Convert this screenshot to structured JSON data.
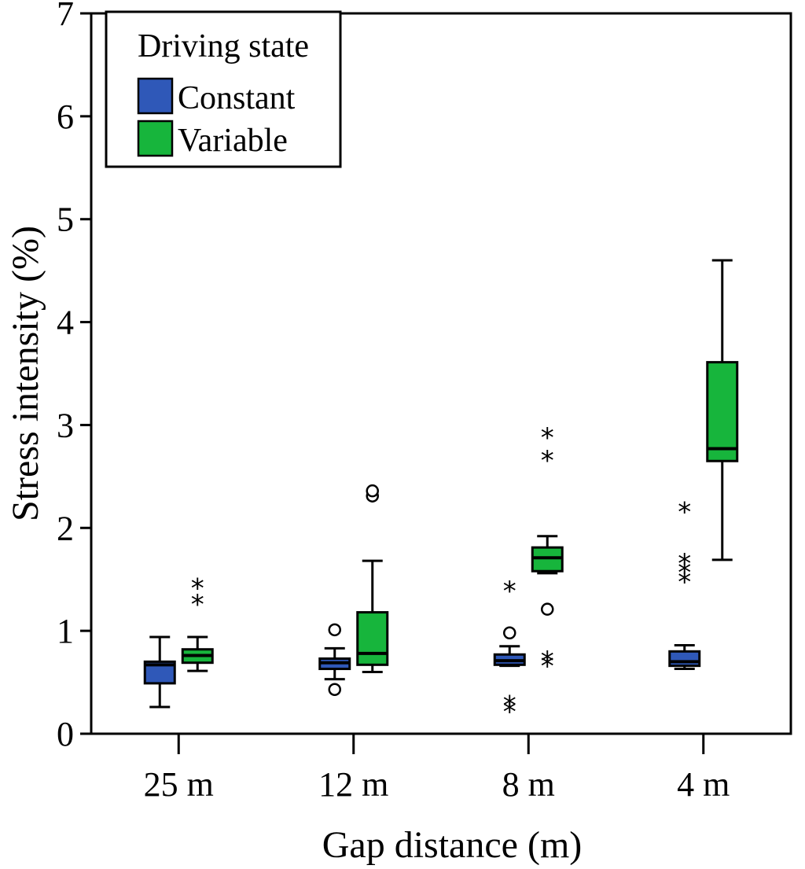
{
  "chart_data": {
    "type": "boxplot",
    "title": "",
    "xlabel": "Gap distance (m)",
    "ylabel": "Stress intensity (%)",
    "ylim": [
      0,
      7
    ],
    "yticks": [
      0,
      1,
      2,
      3,
      4,
      5,
      6,
      7
    ],
    "categories": [
      "25 m",
      "12 m",
      "8 m",
      "4 m"
    ],
    "legend": {
      "title": "Driving state",
      "position": "top-left"
    },
    "series": [
      {
        "name": "Constant",
        "color": "#2f58b8",
        "boxes": [
          {
            "whisker_low": 0.26,
            "q1": 0.49,
            "median": 0.67,
            "q3": 0.7,
            "whisker_high": 0.94,
            "outliers": [],
            "extremes": []
          },
          {
            "whisker_low": 0.53,
            "q1": 0.63,
            "median": 0.69,
            "q3": 0.73,
            "whisker_high": 0.83,
            "outliers": [
              0.43,
              1.01
            ],
            "extremes": []
          },
          {
            "whisker_low": 0.66,
            "q1": 0.67,
            "median": 0.71,
            "q3": 0.77,
            "whisker_high": 0.85,
            "outliers": [
              0.98
            ],
            "extremes": [
              0.25,
              0.31,
              1.42
            ]
          },
          {
            "whisker_low": 0.63,
            "q1": 0.66,
            "median": 0.7,
            "q3": 0.8,
            "whisker_high": 0.86,
            "outliers": [],
            "extremes": [
              1.51,
              1.6,
              1.69,
              2.19
            ]
          }
        ]
      },
      {
        "name": "Variable",
        "color": "#17b53c",
        "boxes": [
          {
            "whisker_low": 0.61,
            "q1": 0.69,
            "median": 0.76,
            "q3": 0.82,
            "whisker_high": 0.94,
            "outliers": [],
            "extremes": [
              1.29,
              1.45
            ]
          },
          {
            "whisker_low": 0.6,
            "q1": 0.67,
            "median": 0.78,
            "q3": 1.18,
            "whisker_high": 1.68,
            "outliers": [
              2.31,
              2.36
            ],
            "extremes": []
          },
          {
            "whisker_low": 1.56,
            "q1": 1.58,
            "median": 1.71,
            "q3": 1.81,
            "whisker_high": 1.92,
            "outliers": [
              1.21
            ],
            "extremes": [
              0.69,
              0.74,
              2.69,
              2.91
            ]
          },
          {
            "whisker_low": 1.69,
            "q1": 2.65,
            "median": 2.77,
            "q3": 3.61,
            "whisker_high": 4.6,
            "outliers": [],
            "extremes": []
          }
        ]
      }
    ]
  }
}
